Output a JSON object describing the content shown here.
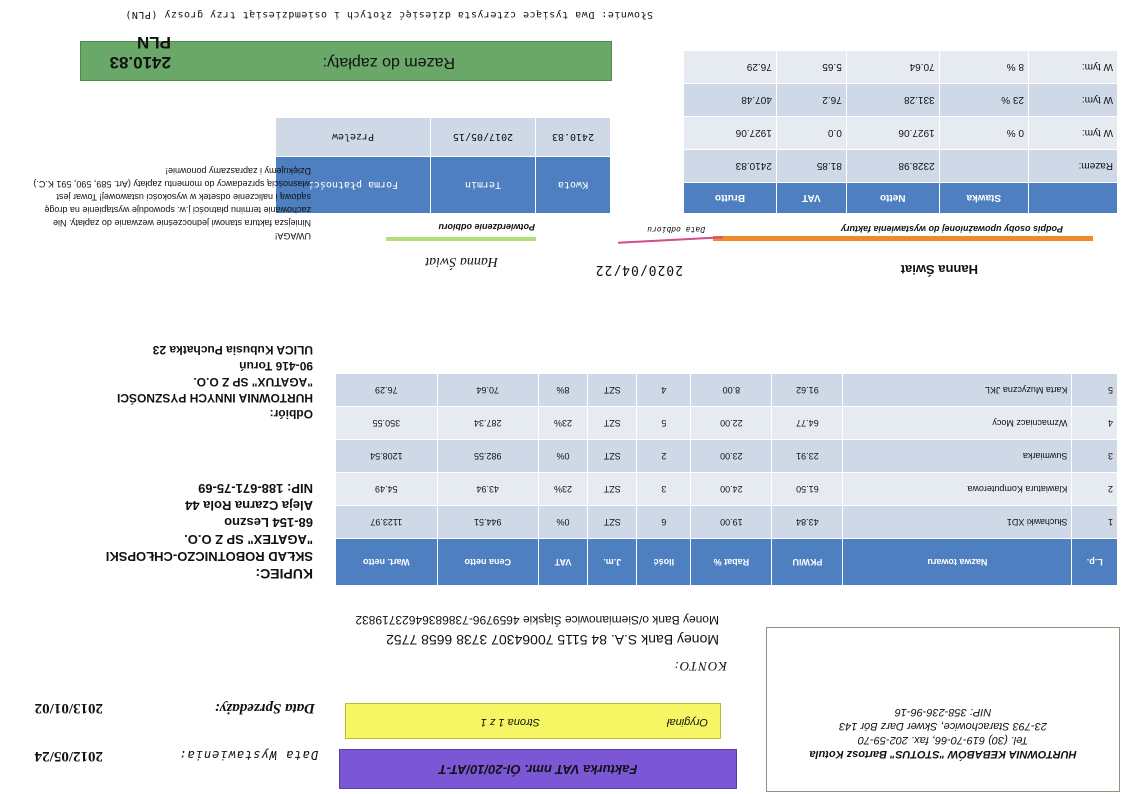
{
  "seller": {
    "name": "HURTOWNIA KEBABÓW \"STOTUS\" Bartosz Kotula",
    "phone": "Tel. (30) 619-70-66, fax. 202-59-70",
    "address": "23-793 Starachowice, Skwer Darz Bór 143",
    "nip": "NIP: 358-236-96-16"
  },
  "dates": {
    "issue_label": "Data Wystawienia:",
    "issue_value": "2012/05/24",
    "sale_label": "Data Sprzedaży:",
    "sale_value": "2013/01/02"
  },
  "invoice": {
    "title": "Fakturka VAT nmr. ÓI-20/10/AT-T",
    "original": "Oryginał",
    "page": "Strona 1 z 1"
  },
  "bank": {
    "konto_label": "KONTO:",
    "line1": "Money Bank S.A. 84 5115 70064307 3738 6658 7752",
    "line2": "Money Bank  o/Siemianowice Śląskie 4659796-73868364623719832"
  },
  "buyer": {
    "label": "KUPIEC:",
    "name_line1": "SKŁAD ROBOTNICZO-CHŁOPSKI",
    "name_line2": "\"AGATEX\" SP Z O.O.",
    "city": "68-154 Leszno",
    "street": "Aleja  Czarna Rola 44",
    "nip": "NIP: 188-671-75-69"
  },
  "recipient": {
    "label": "Odbiór:",
    "name_line1": "HURTOWNIA INNYCH PYSZNOŚCI",
    "name_line2": "\"AGATUX\" SP Z O.O.",
    "city": "90-416 Toruń",
    "street": "ULICA Kubusia Puchatka 23"
  },
  "items": {
    "headers": [
      "L.p.",
      "Nazwa towaru",
      "PKWiU",
      "Rabat %",
      "Ilość",
      "J.m.",
      "VAT",
      "Cena netto",
      "Wart. netto"
    ],
    "rows": [
      [
        "1",
        "Słuchawki XD1",
        "43.84",
        "19.00",
        "6",
        "SZT",
        "0%",
        "944.51",
        "1123.97"
      ],
      [
        "2",
        "Klawiatura Komputerowa",
        "61.50",
        "24.00",
        "3",
        "SZT",
        "23%",
        "43.94",
        "54.49"
      ],
      [
        "3",
        "Suwmiarka",
        "23.91",
        "23.00",
        "2",
        "SZT",
        "0%",
        "982.55",
        "1208.54"
      ],
      [
        "4",
        "Wzmacniacz Mocy",
        "64.77",
        "22.00",
        "5",
        "SZT",
        "23%",
        "287.34",
        "350.55"
      ],
      [
        "5",
        "Karta Muzyczna JKL",
        "91.62",
        "8.00",
        "4",
        "SZT",
        "8%",
        "70.64",
        "76.29"
      ]
    ]
  },
  "signatures": {
    "signer_name": "Hanna  Świat",
    "signer_caption": "Podpis osoby upoważnionej do wystawienia faktury",
    "receipt_date": "2020/04/22",
    "receipt_caption": "Data odbioru",
    "signature_text": "Hanna Świat",
    "confirm_caption": "Potwierdzenie odbioru"
  },
  "rates": {
    "headers": [
      "",
      "Stawka",
      "Netto",
      "VAT",
      "Brutto"
    ],
    "rows": [
      [
        "Razem:",
        "",
        "2328.98",
        "81.85",
        "2410.83"
      ],
      [
        "W tym:",
        "0 %",
        "1927.06",
        "0.0",
        "1927.06"
      ],
      [
        "W tym:",
        "23 %",
        "331.28",
        "76.2",
        "407.48"
      ],
      [
        "W tym:",
        "8 %",
        "70.64",
        "5.65",
        "76.29"
      ]
    ]
  },
  "payment": {
    "headers": [
      "Forma płatności",
      "Termin",
      "Kwota"
    ],
    "values": [
      "Przelew",
      "2017/05/15",
      "2410.83"
    ]
  },
  "notes": {
    "title": "UWAGA!",
    "body": "Niniejsza faktura stanowi jednocześnie wezwanie do zapłaty. Nie zachowanie terminu płatności j.w. spowoduje wystąpienie na drogę sądową i naliczenie odsetek w wysokości ustawowej! Towar jest własnością sprzedawcy do momentu zapłaty (Art. 589, 590, 591 K.C.)",
    "thanks": "Dziękujemy i zapraszamy ponownie!"
  },
  "total": {
    "label": "Razem do zapłaty:",
    "value": "2410.83 PLN"
  },
  "words": "Słownie: Dwa tysiące czterysta dziesięć złotych i osiemdziesiąt trzy groszy (PLN)",
  "colors": {
    "title_bg": "#7b57d6",
    "page_bg": "#f6f665",
    "header_blue": "#4e7fc0",
    "total_green": "#6aa86a",
    "sign_orange": "#ef8a2a"
  }
}
